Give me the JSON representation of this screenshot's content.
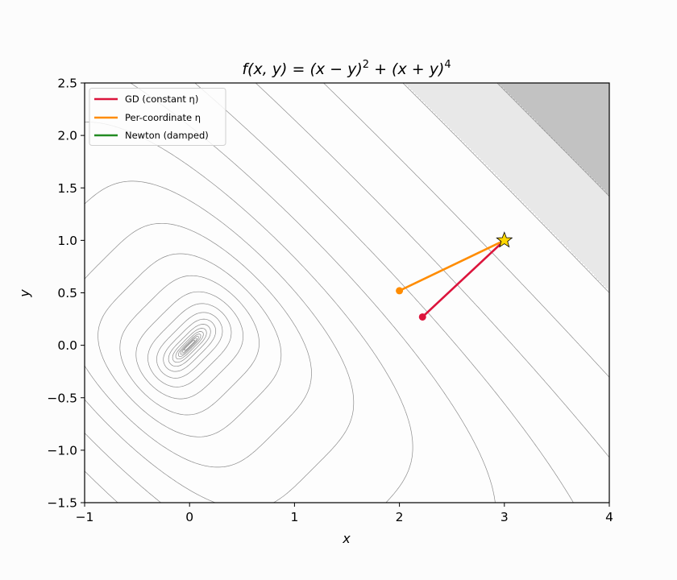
{
  "chart_data": {
    "type": "line",
    "subtype": "contour",
    "title": "f(x, y) = (x − y)² + (x + y)⁴",
    "title_parts": {
      "lhs": "f(x, y) = (x − y)",
      "exp1": "2",
      "mid": " + (x + y)",
      "exp2": "4"
    },
    "xlabel": "x",
    "ylabel": "y",
    "xlim": [
      -1,
      4
    ],
    "ylim": [
      -1.5,
      2.5
    ],
    "xticks": [
      -1,
      0,
      1,
      2,
      3,
      4
    ],
    "xtick_labels": [
      "−1",
      "0",
      "1",
      "2",
      "3",
      "4"
    ],
    "yticks": [
      -1.5,
      -1.0,
      -0.5,
      0.0,
      0.5,
      1.0,
      1.5,
      2.0,
      2.5
    ],
    "ytick_labels": [
      "−1.5",
      "−1.0",
      "−0.5",
      "0.0",
      "0.5",
      "1.0",
      "1.5",
      "2.0",
      "2.5"
    ],
    "grid": false,
    "legend_position": "upper left",
    "contour": {
      "function": "(x - y)^2 + (x + y)^4",
      "levels_geometric": {
        "top": 870,
        "ratio": 2.06,
        "count": 22
      },
      "line_color": "#8c8c8c",
      "fill_regions": [
        {
          "above": 426,
          "color": "#e8e8e8"
        },
        {
          "above": 870,
          "color": "#c2c2c2"
        }
      ]
    },
    "series": [
      {
        "name": "GD (constant η)",
        "color": "#dc143c",
        "x": [
          3.0,
          2.22
        ],
        "y": [
          1.0,
          0.27
        ]
      },
      {
        "name": "Per-coordinate η",
        "color": "#ff8c00",
        "x": [
          3.0,
          2.0
        ],
        "y": [
          1.0,
          0.52
        ]
      },
      {
        "name": "Newton (damped)",
        "color": "#228b22",
        "x": [],
        "y": []
      }
    ],
    "start_point": {
      "x": 3.0,
      "y": 1.0,
      "marker": "star",
      "color": "#ffd700"
    }
  },
  "legend": [
    {
      "label": "GD (constant η)",
      "color": "#dc143c"
    },
    {
      "label": "Per-coordinate η",
      "color": "#ff8c00"
    },
    {
      "label": "Newton (damped)",
      "color": "#228b22"
    }
  ]
}
